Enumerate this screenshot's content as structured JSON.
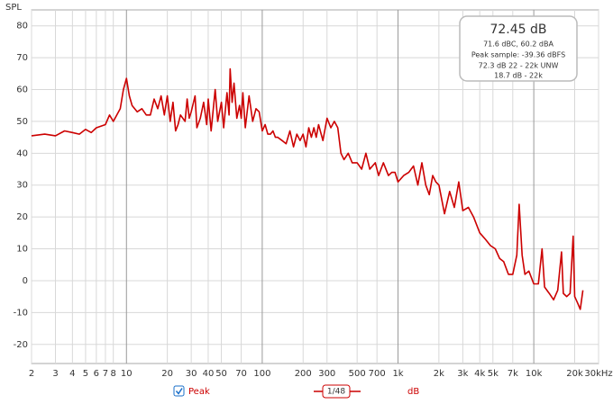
{
  "chart_data": {
    "type": "line",
    "y_label": "SPL",
    "log_x": true,
    "grid": true,
    "xlim": [
      2,
      30000
    ],
    "ylim": [
      -26,
      85
    ],
    "yticks": [
      -20,
      -10,
      0,
      10,
      20,
      30,
      40,
      50,
      60,
      70,
      80
    ],
    "xticks": [
      2,
      3,
      4,
      5,
      6,
      7,
      8,
      10,
      20,
      30,
      40,
      50,
      70,
      100,
      200,
      300,
      500,
      700,
      {
        "value": 1000,
        "label": "1k"
      },
      {
        "value": 2000,
        "label": "2k"
      },
      {
        "value": 3000,
        "label": "3k"
      },
      {
        "value": 4000,
        "label": "4k"
      },
      {
        "value": 5000,
        "label": "5k"
      },
      {
        "value": 7000,
        "label": "7k"
      },
      {
        "value": 10000,
        "label": "10k"
      },
      {
        "value": 20000,
        "label": "20k"
      },
      {
        "value": 30000,
        "label": "30kHz"
      }
    ],
    "x": [
      2,
      2.5,
      3,
      3.5,
      4,
      4.5,
      5,
      5.5,
      6,
      7,
      7.5,
      8,
      9,
      9.5,
      10,
      10.5,
      11,
      12,
      13,
      14,
      15,
      16,
      17,
      18,
      19,
      20,
      21,
      22,
      23,
      24,
      25,
      27,
      28,
      29,
      30,
      32,
      33,
      35,
      37,
      39,
      40,
      42,
      45,
      47,
      50,
      52,
      55,
      57,
      58,
      60,
      62,
      65,
      68,
      70,
      72,
      75,
      78,
      80,
      85,
      90,
      95,
      100,
      105,
      110,
      115,
      120,
      125,
      130,
      140,
      150,
      160,
      170,
      180,
      190,
      200,
      210,
      220,
      230,
      240,
      250,
      260,
      280,
      300,
      320,
      340,
      360,
      380,
      400,
      430,
      460,
      500,
      540,
      580,
      620,
      680,
      720,
      780,
      850,
      900,
      950,
      1000,
      1100,
      1200,
      1300,
      1400,
      1500,
      1600,
      1700,
      1800,
      1900,
      2000,
      2200,
      2400,
      2600,
      2800,
      3000,
      3300,
      3600,
      4000,
      4400,
      4800,
      5200,
      5600,
      6000,
      6500,
      7000,
      7500,
      7800,
      8200,
      8600,
      9200,
      10000,
      10800,
      11500,
      12000,
      13000,
      14000,
      15000,
      16000,
      16500,
      17500,
      18500,
      19500,
      20000,
      21000,
      22000,
      23000
    ],
    "series": [
      {
        "name": "Peak",
        "color": "#cc0000",
        "values": [
          45.5,
          46,
          45.5,
          47,
          46.5,
          46,
          47.5,
          46.5,
          48,
          49,
          52,
          50,
          54,
          60,
          63.5,
          58,
          55,
          53,
          54,
          52,
          52,
          57,
          54,
          58,
          52,
          58,
          50,
          56,
          47,
          49,
          52,
          50,
          57,
          51,
          53,
          58,
          48,
          51,
          56,
          49,
          57,
          47,
          60,
          50,
          56,
          48,
          59,
          52,
          66.5,
          56,
          62,
          51,
          55,
          51,
          59,
          48,
          54,
          58,
          50,
          54,
          53,
          47,
          49,
          46,
          46,
          47,
          45,
          45,
          44,
          43,
          47,
          42,
          46,
          44,
          46,
          42,
          48,
          45,
          48,
          45,
          49,
          44,
          51,
          48,
          50,
          48,
          40,
          38,
          40,
          37,
          37,
          35,
          40,
          35,
          37,
          33,
          37,
          33,
          34,
          34,
          31,
          33,
          34,
          36,
          30,
          37,
          30,
          27,
          33,
          31,
          30,
          21,
          28,
          23,
          31,
          22,
          23,
          20,
          15,
          13,
          11,
          10,
          7,
          6,
          2,
          2,
          8,
          24,
          8,
          2,
          3,
          -1,
          -1,
          10,
          -2,
          -4,
          -6,
          -3,
          9,
          -4,
          -5,
          -4,
          14,
          -5,
          -7,
          -9,
          -3
        ]
      }
    ],
    "smoothing": "1/48",
    "unit": "dB",
    "readout": {
      "level": "72.45 dB",
      "weighted": "71.6 dBC, 60.2 dBA",
      "peak_sample": "Peak sample: -39.36 dBFS",
      "unweighted": "72.3 dB 22 - 22k UNW",
      "range": "18.7 dB - 22k"
    }
  }
}
